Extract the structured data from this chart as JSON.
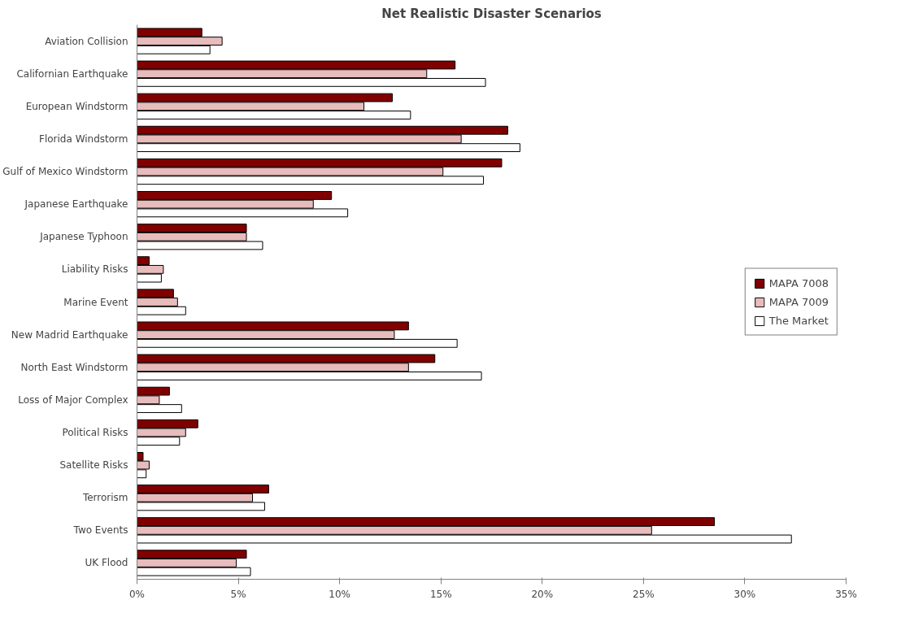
{
  "chart_data": {
    "type": "bar",
    "orientation": "horizontal",
    "title": "Net Realistic Disaster Scenarios",
    "categories": [
      "Aviation Collision",
      "Californian Earthquake",
      "European Windstorm",
      "Florida Windstorm",
      "Gulf of Mexico Windstorm",
      "Japanese Earthquake",
      "Japanese Typhoon",
      "Liability Risks",
      "Marine Event",
      "New Madrid Earthquake",
      "North East Windstorm",
      "Loss of Major Complex",
      "Political Risks",
      "Satellite Risks",
      "Terrorism",
      "Two Events",
      "UK Flood"
    ],
    "series": [
      {
        "name": "MAPA 7008",
        "color": "#800000",
        "values": [
          3.2,
          15.7,
          12.6,
          18.3,
          18.0,
          9.6,
          5.4,
          0.6,
          1.8,
          13.4,
          14.7,
          1.6,
          3.0,
          0.3,
          6.5,
          28.5,
          5.4
        ]
      },
      {
        "name": "MAPA 7009",
        "color": "#e8bcbc",
        "values": [
          4.2,
          14.3,
          11.2,
          16.0,
          15.1,
          8.7,
          5.4,
          1.3,
          2.0,
          12.7,
          13.4,
          1.1,
          2.4,
          0.6,
          5.7,
          25.4,
          4.9
        ]
      },
      {
        "name": "The Market",
        "color": "#ffffff",
        "values": [
          3.6,
          17.2,
          13.5,
          18.9,
          17.1,
          10.4,
          6.2,
          1.2,
          2.4,
          15.8,
          17.0,
          2.2,
          2.1,
          0.45,
          6.3,
          32.3,
          5.6
        ]
      }
    ],
    "xlim": [
      0,
      35
    ],
    "xticks": [
      {
        "value": 0,
        "label": "0%"
      },
      {
        "value": 5,
        "label": "5%"
      },
      {
        "value": 10,
        "label": "10%"
      },
      {
        "value": 15,
        "label": "15%"
      },
      {
        "value": 20,
        "label": "20%"
      },
      {
        "value": 25,
        "label": "25%"
      },
      {
        "value": 30,
        "label": "30%"
      },
      {
        "value": 35,
        "label": "35%"
      }
    ],
    "grid": false,
    "legend": "right"
  }
}
